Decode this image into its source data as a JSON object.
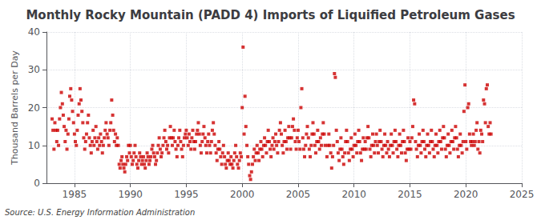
{
  "chart_data": {
    "type": "scatter",
    "title": "Monthly Rocky Mountain (PADD 4) Imports of Liquified Petroleum Gases",
    "y_label": "Thousand Barrels per Day",
    "annotation": "Source: U.S. Energy Information Administration",
    "color": "#cc0000",
    "marker": "square",
    "grid": true,
    "xlim": [
      1982.5,
      2025
    ],
    "xticks": [
      1985,
      1990,
      1995,
      2000,
      2005,
      2010,
      2015,
      2020,
      2025
    ],
    "ylim": [
      0,
      40
    ],
    "yticks": [
      0,
      10,
      20,
      30,
      40
    ],
    "x": [
      1983.0,
      1983.08,
      1983.17,
      1983.25,
      1983.33,
      1983.42,
      1983.5,
      1983.58,
      1983.67,
      1983.75,
      1983.83,
      1983.92,
      1984.0,
      1984.08,
      1984.17,
      1984.25,
      1984.33,
      1984.42,
      1984.5,
      1984.58,
      1984.67,
      1984.75,
      1984.83,
      1984.92,
      1985.0,
      1985.08,
      1985.17,
      1985.25,
      1985.33,
      1985.42,
      1985.5,
      1985.58,
      1985.67,
      1985.75,
      1985.83,
      1985.92,
      1986.0,
      1986.08,
      1986.17,
      1986.25,
      1986.33,
      1986.42,
      1986.5,
      1986.58,
      1986.67,
      1986.75,
      1986.83,
      1986.92,
      1987.0,
      1987.08,
      1987.17,
      1987.25,
      1987.33,
      1987.42,
      1987.5,
      1987.58,
      1987.67,
      1987.75,
      1987.83,
      1987.92,
      1988.0,
      1988.08,
      1988.17,
      1988.25,
      1988.33,
      1988.42,
      1988.5,
      1988.58,
      1988.67,
      1988.75,
      1988.83,
      1988.92,
      1989.0,
      1989.08,
      1989.17,
      1989.25,
      1989.33,
      1989.42,
      1989.5,
      1989.58,
      1989.67,
      1989.75,
      1989.83,
      1989.92,
      1990.0,
      1990.08,
      1990.17,
      1990.25,
      1990.33,
      1990.42,
      1990.5,
      1990.58,
      1990.67,
      1990.75,
      1990.83,
      1990.92,
      1991.0,
      1991.08,
      1991.17,
      1991.25,
      1991.33,
      1991.42,
      1991.5,
      1991.58,
      1991.67,
      1991.75,
      1991.83,
      1991.92,
      1992.0,
      1992.08,
      1992.17,
      1992.25,
      1992.33,
      1992.42,
      1992.5,
      1992.58,
      1992.67,
      1992.75,
      1992.83,
      1992.92,
      1993.0,
      1993.08,
      1993.17,
      1993.25,
      1993.33,
      1993.42,
      1993.5,
      1993.58,
      1993.67,
      1993.75,
      1993.83,
      1993.92,
      1994.0,
      1994.08,
      1994.17,
      1994.25,
      1994.33,
      1994.42,
      1994.5,
      1994.58,
      1994.67,
      1994.75,
      1994.83,
      1994.92,
      1995.0,
      1995.08,
      1995.17,
      1995.25,
      1995.33,
      1995.42,
      1995.5,
      1995.58,
      1995.67,
      1995.75,
      1995.83,
      1995.92,
      1996.0,
      1996.08,
      1996.17,
      1996.25,
      1996.33,
      1996.42,
      1996.5,
      1996.58,
      1996.67,
      1996.75,
      1996.83,
      1996.92,
      1997.0,
      1997.08,
      1997.17,
      1997.25,
      1997.33,
      1997.42,
      1997.5,
      1997.58,
      1997.67,
      1997.75,
      1997.83,
      1997.92,
      1998.0,
      1998.08,
      1998.17,
      1998.25,
      1998.33,
      1998.42,
      1998.5,
      1998.58,
      1998.67,
      1998.75,
      1998.83,
      1998.92,
      1999.0,
      1999.08,
      1999.17,
      1999.25,
      1999.33,
      1999.42,
      1999.5,
      1999.58,
      1999.67,
      1999.75,
      1999.83,
      1999.92,
      2000.0,
      2000.08,
      2000.17,
      2000.25,
      2000.33,
      2000.42,
      2000.5,
      2000.58,
      2000.67,
      2000.75,
      2000.83,
      2000.92,
      2001.0,
      2001.08,
      2001.17,
      2001.25,
      2001.33,
      2001.42,
      2001.5,
      2001.58,
      2001.67,
      2001.75,
      2001.83,
      2001.92,
      2002.0,
      2002.08,
      2002.17,
      2002.25,
      2002.33,
      2002.42,
      2002.5,
      2002.58,
      2002.67,
      2002.75,
      2002.83,
      2002.92,
      2003.0,
      2003.08,
      2003.17,
      2003.25,
      2003.33,
      2003.42,
      2003.5,
      2003.58,
      2003.67,
      2003.75,
      2003.83,
      2003.92,
      2004.0,
      2004.08,
      2004.17,
      2004.25,
      2004.33,
      2004.42,
      2004.5,
      2004.58,
      2004.67,
      2004.75,
      2004.83,
      2004.92,
      2005.0,
      2005.08,
      2005.17,
      2005.25,
      2005.33,
      2005.42,
      2005.5,
      2005.58,
      2005.67,
      2005.75,
      2005.83,
      2005.92,
      2006.0,
      2006.08,
      2006.17,
      2006.25,
      2006.33,
      2006.42,
      2006.5,
      2006.58,
      2006.67,
      2006.75,
      2006.83,
      2006.92,
      2007.0,
      2007.08,
      2007.17,
      2007.25,
      2007.33,
      2007.42,
      2007.58,
      2007.67,
      2007.75,
      2007.83,
      2007.92,
      2008.0,
      2008.08,
      2008.17,
      2008.25,
      2008.33,
      2008.42,
      2008.5,
      2008.58,
      2008.67,
      2008.75,
      2008.83,
      2008.92,
      2009.0,
      2009.08,
      2009.17,
      2009.25,
      2009.33,
      2009.42,
      2009.5,
      2009.58,
      2009.67,
      2009.75,
      2009.83,
      2009.92,
      2010.0,
      2010.08,
      2010.17,
      2010.25,
      2010.33,
      2010.42,
      2010.5,
      2010.58,
      2010.67,
      2010.75,
      2010.83,
      2010.92,
      2011.0,
      2011.08,
      2011.17,
      2011.25,
      2011.33,
      2011.42,
      2011.5,
      2011.58,
      2011.67,
      2011.75,
      2011.83,
      2011.92,
      2012.0,
      2012.08,
      2012.17,
      2012.25,
      2012.33,
      2012.42,
      2012.5,
      2012.58,
      2012.67,
      2012.75,
      2012.83,
      2012.92,
      2013.0,
      2013.08,
      2013.17,
      2013.25,
      2013.33,
      2013.42,
      2013.5,
      2013.58,
      2013.67,
      2013.75,
      2013.83,
      2013.92,
      2014.0,
      2014.08,
      2014.17,
      2014.25,
      2014.33,
      2014.42,
      2014.5,
      2014.58,
      2014.67,
      2014.75,
      2014.83,
      2014.92,
      2015.0,
      2015.08,
      2015.17,
      2015.25,
      2015.33,
      2015.42,
      2015.5,
      2015.58,
      2015.67,
      2015.75,
      2015.83,
      2015.92,
      2016.0,
      2016.08,
      2016.17,
      2016.25,
      2016.33,
      2016.42,
      2016.5,
      2016.58,
      2016.67,
      2016.75,
      2016.83,
      2016.92,
      2017.0,
      2017.08,
      2017.17,
      2017.25,
      2017.33,
      2017.42,
      2017.5,
      2017.58,
      2017.67,
      2017.75,
      2017.83,
      2017.92,
      2018.0,
      2018.08,
      2018.17,
      2018.25,
      2018.33,
      2018.42,
      2018.5,
      2018.58,
      2018.67,
      2018.75,
      2018.83,
      2018.92,
      2019.0,
      2019.08,
      2019.17,
      2019.25,
      2019.33,
      2019.42,
      2019.5,
      2019.58,
      2019.67,
      2019.75,
      2019.83,
      2019.92,
      2020.0,
      2020.08,
      2020.17,
      2020.25,
      2020.33,
      2020.42,
      2020.5,
      2020.58,
      2020.67,
      2020.75,
      2020.83,
      2020.92,
      2021.0,
      2021.08,
      2021.17,
      2021.25,
      2021.33,
      2021.42,
      2021.5,
      2021.58,
      2021.67,
      2021.75,
      2021.83,
      2021.92,
      2022.0,
      2022.08,
      2022.17,
      2022.25
    ],
    "values": [
      17,
      14,
      9,
      16,
      14,
      11,
      14,
      10,
      17,
      20,
      24,
      21,
      18,
      15,
      11,
      14,
      9,
      13,
      17,
      23,
      25,
      22,
      19,
      16,
      13,
      11,
      10,
      14,
      18,
      21,
      25,
      22,
      19,
      16,
      12,
      9,
      11,
      13,
      16,
      18,
      12,
      10,
      8,
      11,
      14,
      10,
      12,
      15,
      11,
      9,
      12,
      10,
      13,
      11,
      8,
      10,
      12,
      14,
      16,
      13,
      12,
      10,
      14,
      16,
      22,
      18,
      14,
      11,
      13,
      10,
      12,
      10,
      5,
      4,
      6,
      7,
      5,
      4,
      3,
      5,
      7,
      6,
      10,
      8,
      10,
      7,
      5,
      6,
      8,
      10,
      7,
      5,
      4,
      6,
      8,
      7,
      5,
      6,
      7,
      5,
      4,
      6,
      8,
      7,
      5,
      6,
      7,
      9,
      10,
      8,
      7,
      5,
      6,
      8,
      10,
      12,
      9,
      7,
      8,
      10,
      12,
      14,
      11,
      9,
      10,
      8,
      12,
      15,
      12,
      10,
      12,
      14,
      11,
      9,
      7,
      10,
      12,
      14,
      11,
      9,
      7,
      10,
      12,
      13,
      14,
      12,
      10,
      13,
      11,
      9,
      12,
      14,
      11,
      9,
      11,
      13,
      14,
      16,
      13,
      10,
      8,
      11,
      13,
      15,
      12,
      10,
      8,
      11,
      13,
      10,
      8,
      11,
      14,
      16,
      13,
      10,
      8,
      6,
      9,
      11,
      9,
      7,
      5,
      8,
      10,
      7,
      5,
      4,
      6,
      8,
      6,
      5,
      7,
      5,
      4,
      6,
      8,
      10,
      7,
      5,
      4,
      6,
      8,
      7,
      20,
      36,
      13,
      23,
      15,
      10,
      7,
      5,
      2,
      1,
      3,
      5,
      7,
      9,
      6,
      8,
      10,
      8,
      6,
      9,
      11,
      9,
      7,
      10,
      12,
      10,
      8,
      11,
      14,
      11,
      9,
      7,
      10,
      12,
      9,
      11,
      13,
      10,
      8,
      11,
      14,
      16,
      13,
      10,
      8,
      11,
      14,
      11,
      9,
      12,
      15,
      12,
      9,
      12,
      15,
      17,
      14,
      11,
      9,
      12,
      14,
      11,
      9,
      20,
      25,
      12,
      9,
      7,
      10,
      13,
      15,
      12,
      9,
      7,
      10,
      13,
      16,
      13,
      10,
      8,
      11,
      14,
      11,
      9,
      12,
      10,
      13,
      16,
      13,
      10,
      7,
      10,
      13,
      10,
      8,
      4,
      7,
      10,
      29,
      28,
      14,
      11,
      8,
      6,
      9,
      12,
      9,
      7,
      5,
      8,
      11,
      14,
      11,
      8,
      6,
      9,
      12,
      9,
      7,
      10,
      13,
      10,
      8,
      11,
      14,
      11,
      8,
      6,
      9,
      12,
      9,
      11,
      9,
      12,
      15,
      12,
      9,
      7,
      10,
      13,
      10,
      8,
      11,
      13,
      10,
      8,
      11,
      14,
      11,
      9,
      7,
      10,
      13,
      10,
      8,
      11,
      9,
      7,
      10,
      13,
      10,
      8,
      11,
      14,
      11,
      9,
      7,
      10,
      13,
      10,
      8,
      11,
      14,
      11,
      8,
      6,
      9,
      12,
      9,
      11,
      9,
      12,
      15,
      22,
      21,
      11,
      9,
      7,
      10,
      13,
      10,
      8,
      11,
      14,
      11,
      9,
      7,
      10,
      13,
      10,
      8,
      11,
      14,
      11,
      9,
      7,
      10,
      13,
      10,
      8,
      11,
      14,
      11,
      9,
      12,
      15,
      12,
      9,
      7,
      10,
      13,
      10,
      8,
      11,
      14,
      11,
      9,
      12,
      15,
      12,
      9,
      7,
      10,
      13,
      10,
      8,
      11,
      19,
      26,
      11,
      9,
      20,
      21,
      13,
      11,
      10,
      11,
      13,
      10,
      11,
      14,
      16,
      9,
      11,
      8,
      14,
      13,
      11,
      22,
      21,
      16,
      25,
      26,
      15,
      13,
      16,
      13
    ]
  }
}
